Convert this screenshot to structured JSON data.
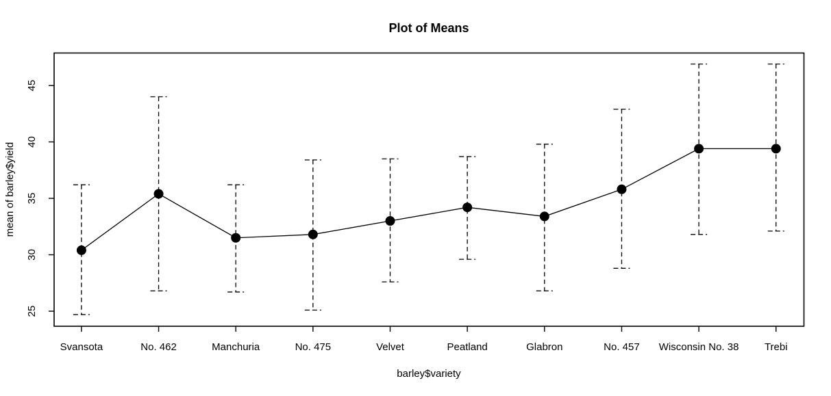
{
  "figure": {
    "title": "Plot of Means",
    "xlabel": "barley$variety",
    "ylabel": "mean of barley$yield"
  },
  "chart_data": {
    "type": "line",
    "title": "Plot of Means",
    "xlabel": "barley$variety",
    "ylabel": "mean of barley$yield",
    "categories": [
      "Svansota",
      "No. 462",
      "Manchuria",
      "No. 475",
      "Velvet",
      "Peatland",
      "Glabron",
      "No. 457",
      "Wisconsin No. 38",
      "Trebi"
    ],
    "series": [
      {
        "name": "mean of barley$yield",
        "values": [
          30.4,
          35.4,
          31.5,
          31.8,
          33.0,
          34.2,
          33.4,
          35.8,
          39.4,
          39.4
        ]
      }
    ],
    "error_bars": {
      "style": "dashed",
      "upper": [
        36.2,
        44.0,
        36.2,
        38.4,
        38.5,
        38.7,
        39.8,
        42.9,
        46.9,
        46.9
      ],
      "lower": [
        24.7,
        26.8,
        26.7,
        25.1,
        27.6,
        29.6,
        26.8,
        28.8,
        31.8,
        32.1
      ]
    },
    "yticks": [
      25,
      30,
      35,
      40,
      45
    ],
    "ylim": [
      23.7,
      47.9
    ],
    "grid": false,
    "legend_position": "none",
    "marker": "filled-circle",
    "colors": {
      "foreground": "#000000",
      "background": "#ffffff"
    }
  }
}
